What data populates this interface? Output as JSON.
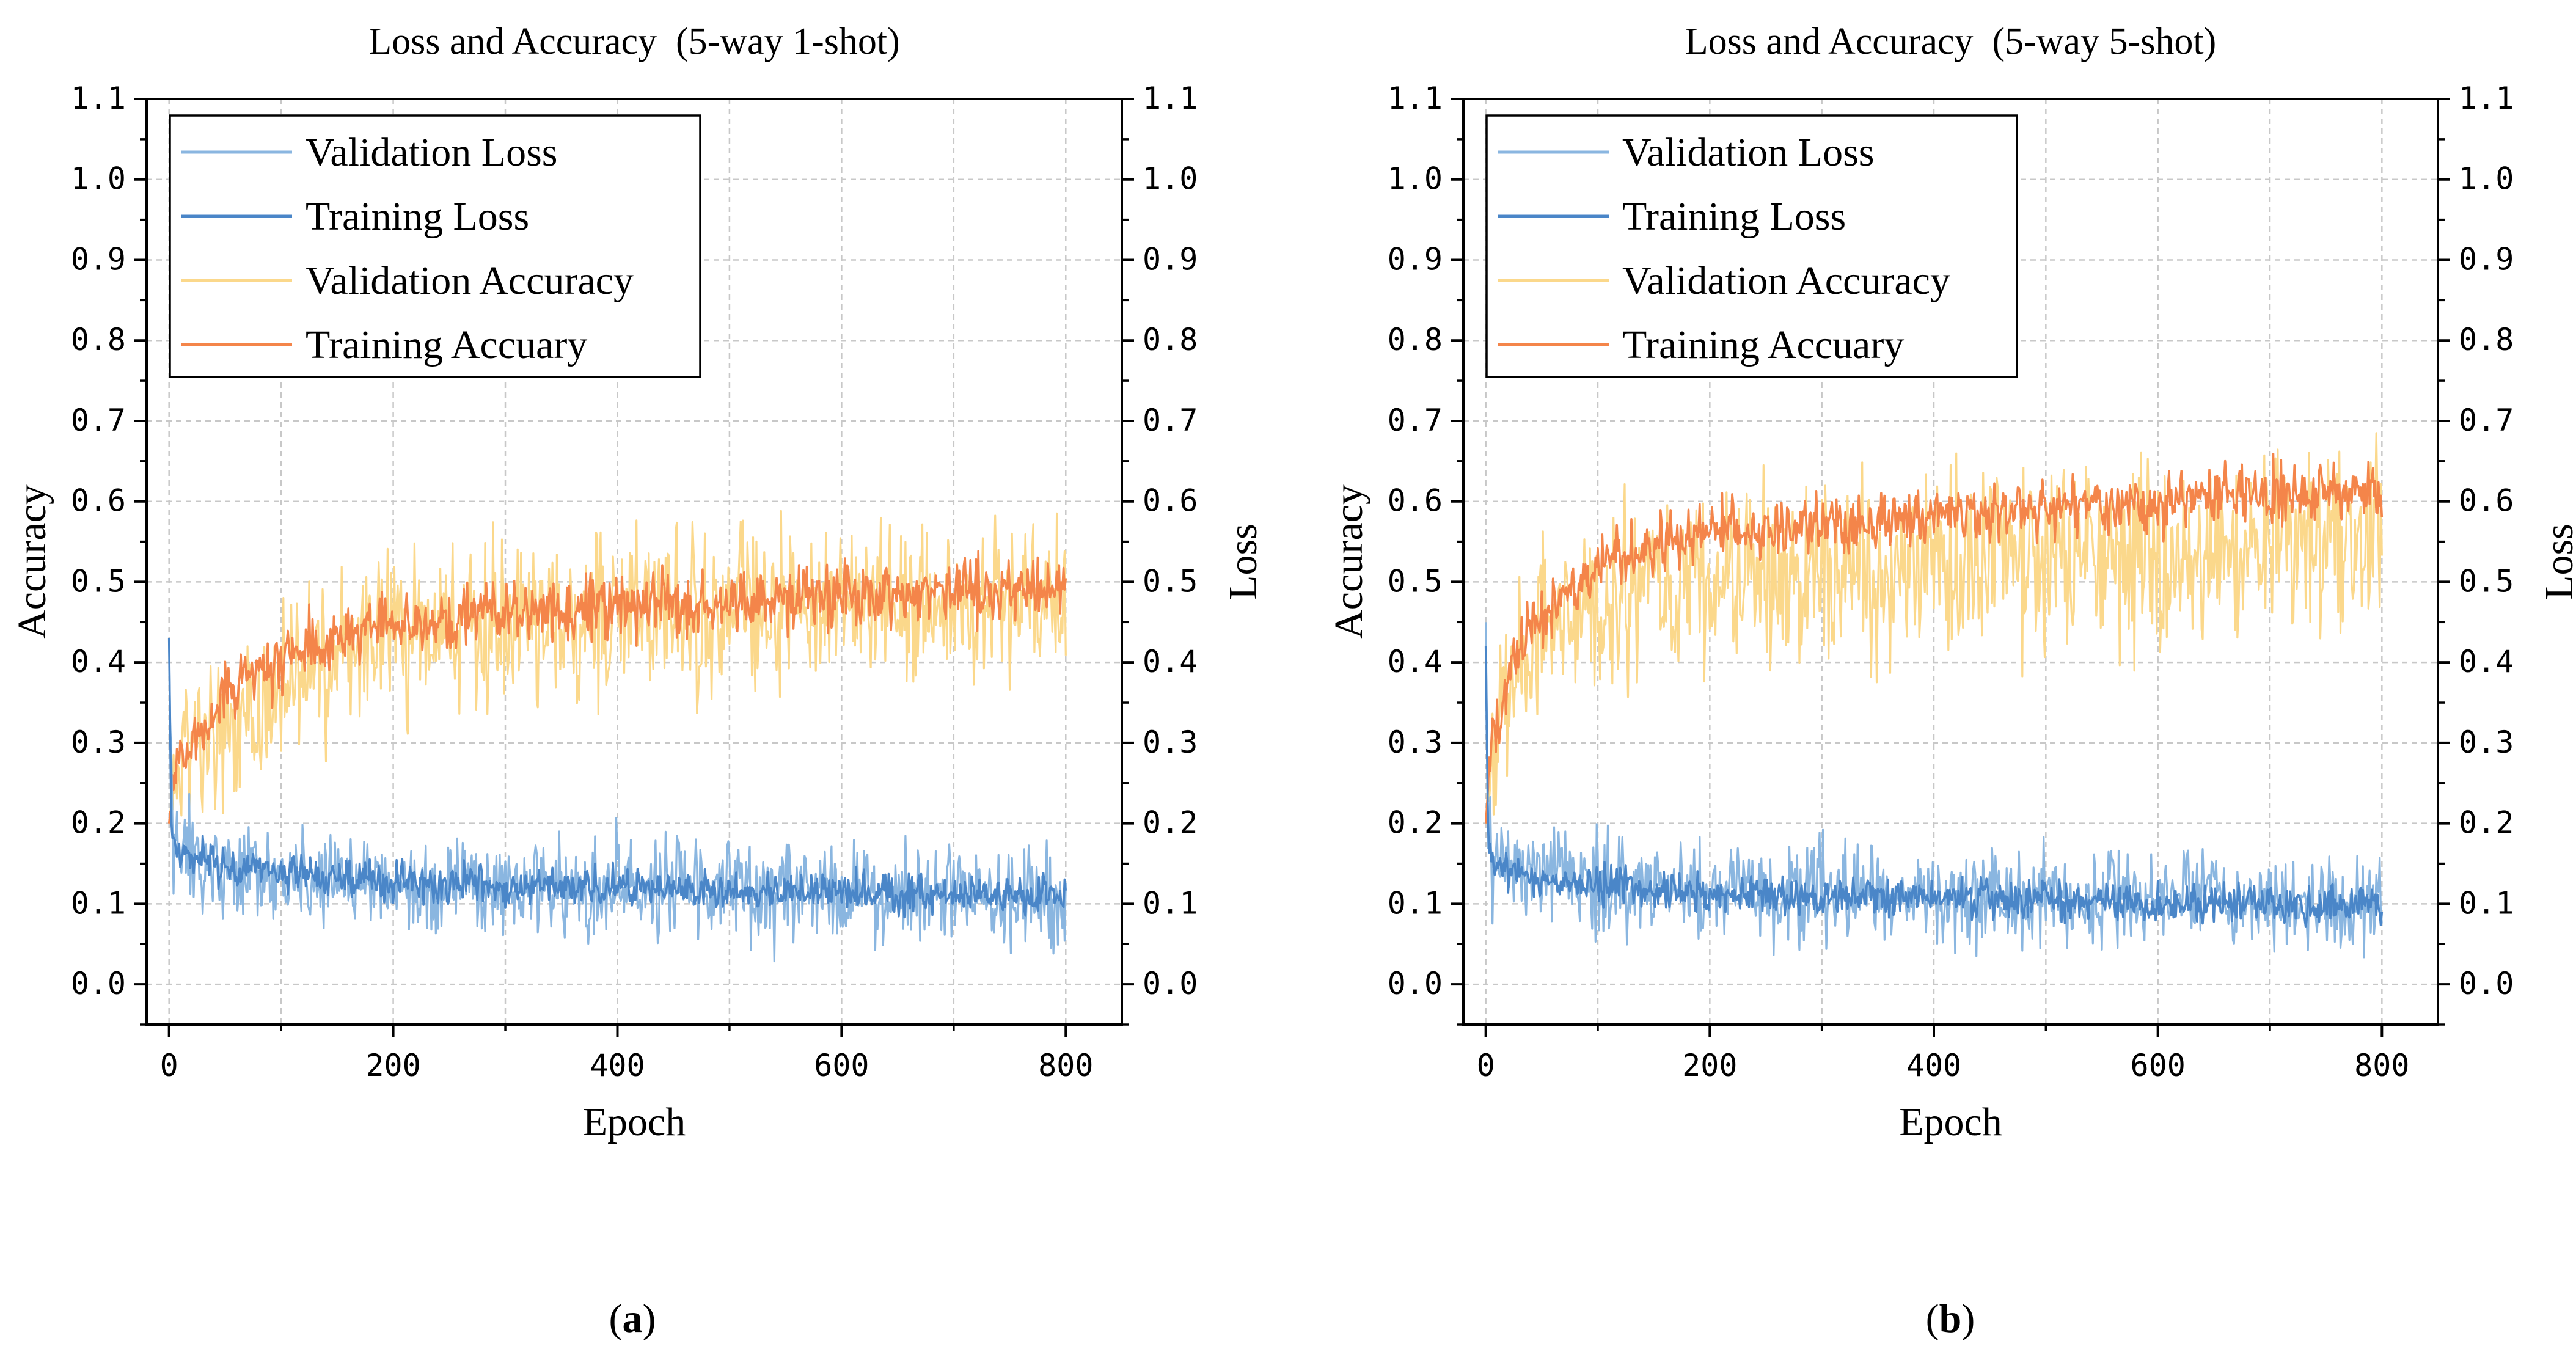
{
  "chart_data": [
    {
      "type": "line",
      "title": "Loss and Accuracy  (5-way 1-shot)",
      "xlabel": "Epoch",
      "ylabel": "Accuracy",
      "y2label": "Loss",
      "xlim": [
        -20,
        850
      ],
      "ylim": [
        -0.05,
        1.1
      ],
      "y2lim": [
        -0.05,
        1.1
      ],
      "xticks": [
        0,
        200,
        400,
        600,
        800
      ],
      "xtick_labels": [
        "0",
        "200",
        "400",
        "600",
        "800"
      ],
      "yticks": [
        0.0,
        0.1,
        0.2,
        0.3,
        0.4,
        0.5,
        0.6,
        0.7,
        0.8,
        0.9,
        1.0,
        1.1
      ],
      "ytick_labels": [
        "0.0",
        "0.1",
        "0.2",
        "0.3",
        "0.4",
        "0.5",
        "0.6",
        "0.7",
        "0.8",
        "0.9",
        "1.0",
        "1.1"
      ],
      "grid": true,
      "legend_position": "top-left",
      "panel_label": "a",
      "series": [
        {
          "name": "Validation Loss",
          "axis": "right",
          "color": "#8ab6e0",
          "x": [
            0,
            2,
            5,
            10,
            25,
            50,
            100,
            150,
            200,
            300,
            400,
            500,
            600,
            700,
            800
          ],
          "y": [
            0.43,
            0.22,
            0.17,
            0.16,
            0.15,
            0.14,
            0.135,
            0.13,
            0.125,
            0.12,
            0.118,
            0.115,
            0.112,
            0.11,
            0.105
          ],
          "noise": 0.03
        },
        {
          "name": "Training Loss",
          "axis": "right",
          "color": "#4a86c8",
          "x": [
            0,
            2,
            5,
            10,
            25,
            50,
            100,
            150,
            200,
            300,
            400,
            500,
            600,
            700,
            800
          ],
          "y": [
            0.43,
            0.2,
            0.17,
            0.16,
            0.155,
            0.148,
            0.138,
            0.132,
            0.128,
            0.122,
            0.12,
            0.117,
            0.115,
            0.112,
            0.11
          ],
          "noise": 0.012
        },
        {
          "name": "Validation Accuracy",
          "axis": "left",
          "color": "#fbd88b",
          "x": [
            0,
            5,
            25,
            50,
            100,
            150,
            200,
            300,
            400,
            500,
            600,
            700,
            800
          ],
          "y": [
            0.2,
            0.26,
            0.28,
            0.32,
            0.38,
            0.41,
            0.43,
            0.45,
            0.46,
            0.465,
            0.47,
            0.475,
            0.48
          ],
          "noise": 0.05
        },
        {
          "name": "Training Accuary",
          "axis": "left",
          "color": "#f4854a",
          "x": [
            0,
            5,
            25,
            50,
            100,
            150,
            200,
            300,
            400,
            500,
            600,
            700,
            800
          ],
          "y": [
            0.2,
            0.27,
            0.31,
            0.36,
            0.4,
            0.43,
            0.445,
            0.46,
            0.47,
            0.475,
            0.48,
            0.485,
            0.49
          ],
          "noise": 0.02
        }
      ]
    },
    {
      "type": "line",
      "title": "Loss and Accuracy  (5-way 5-shot)",
      "xlabel": "Epoch",
      "ylabel": "Accuracy",
      "y2label": "Loss",
      "xlim": [
        -20,
        850
      ],
      "ylim": [
        -0.05,
        1.1
      ],
      "y2lim": [
        -0.05,
        1.1
      ],
      "xticks": [
        0,
        200,
        400,
        600,
        800
      ],
      "xtick_labels": [
        "0",
        "200",
        "400",
        "600",
        "800"
      ],
      "yticks": [
        0.0,
        0.1,
        0.2,
        0.3,
        0.4,
        0.5,
        0.6,
        0.7,
        0.8,
        0.9,
        1.0,
        1.1
      ],
      "ytick_labels": [
        "0.0",
        "0.1",
        "0.2",
        "0.3",
        "0.4",
        "0.5",
        "0.6",
        "0.7",
        "0.8",
        "0.9",
        "1.0",
        "1.1"
      ],
      "grid": true,
      "legend_position": "top-left",
      "panel_label": "b",
      "series": [
        {
          "name": "Validation Loss",
          "axis": "right",
          "color": "#8ab6e0",
          "x": [
            0,
            2,
            5,
            10,
            25,
            50,
            100,
            150,
            200,
            300,
            400,
            500,
            600,
            700,
            800
          ],
          "y": [
            0.45,
            0.2,
            0.16,
            0.15,
            0.14,
            0.13,
            0.125,
            0.12,
            0.115,
            0.112,
            0.11,
            0.108,
            0.105,
            0.103,
            0.1
          ],
          "noise": 0.03
        },
        {
          "name": "Training Loss",
          "axis": "right",
          "color": "#4a86c8",
          "x": [
            0,
            2,
            5,
            10,
            25,
            50,
            100,
            150,
            200,
            300,
            400,
            500,
            600,
            700,
            800
          ],
          "y": [
            0.42,
            0.19,
            0.16,
            0.15,
            0.14,
            0.13,
            0.122,
            0.117,
            0.113,
            0.11,
            0.107,
            0.105,
            0.102,
            0.1,
            0.098
          ],
          "noise": 0.012
        },
        {
          "name": "Validation Accuracy",
          "axis": "left",
          "color": "#fbd88b",
          "x": [
            0,
            5,
            25,
            50,
            100,
            150,
            200,
            300,
            400,
            500,
            600,
            700,
            800
          ],
          "y": [
            0.2,
            0.3,
            0.38,
            0.43,
            0.47,
            0.49,
            0.5,
            0.51,
            0.52,
            0.53,
            0.54,
            0.55,
            0.55
          ],
          "noise": 0.055
        },
        {
          "name": "Training Accuary",
          "axis": "left",
          "color": "#f4854a",
          "x": [
            0,
            5,
            25,
            50,
            100,
            150,
            200,
            300,
            400,
            500,
            600,
            700,
            800
          ],
          "y": [
            0.2,
            0.3,
            0.4,
            0.46,
            0.52,
            0.545,
            0.56,
            0.57,
            0.58,
            0.59,
            0.6,
            0.61,
            0.615
          ],
          "noise": 0.018
        }
      ]
    }
  ]
}
